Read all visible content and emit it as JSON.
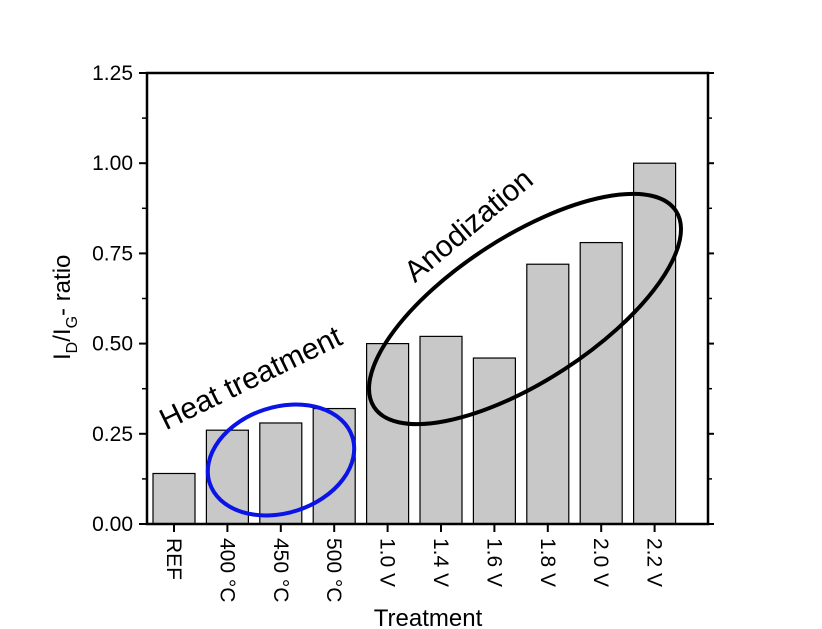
{
  "chart_data": {
    "type": "bar",
    "categories": [
      "REF",
      "400 °C",
      "450 °C",
      "500 °C",
      "1.0 V",
      "1.4 V",
      "1.6 V",
      "1.8 V",
      "2.0 V",
      "2.2 V"
    ],
    "values": [
      0.14,
      0.26,
      0.28,
      0.32,
      0.5,
      0.52,
      0.46,
      0.72,
      0.78,
      1.0
    ],
    "xlabel": "Treatment",
    "ylabel_main": "I",
    "ylabel_sub1": "D",
    "ylabel_mid": "/I",
    "ylabel_sub2": "G",
    "ylabel_tail": "- ratio",
    "ylim": [
      0,
      1.25
    ],
    "yticks": [
      "0.00",
      "0.25",
      "0.50",
      "0.75",
      "1.00",
      "1.25"
    ],
    "bar_color": "#c8c8c8",
    "grid": false,
    "annotations": [
      {
        "text": "Heat treatment",
        "color": "#0a14e6"
      },
      {
        "text": "Anodization",
        "color": "#000000"
      }
    ]
  }
}
